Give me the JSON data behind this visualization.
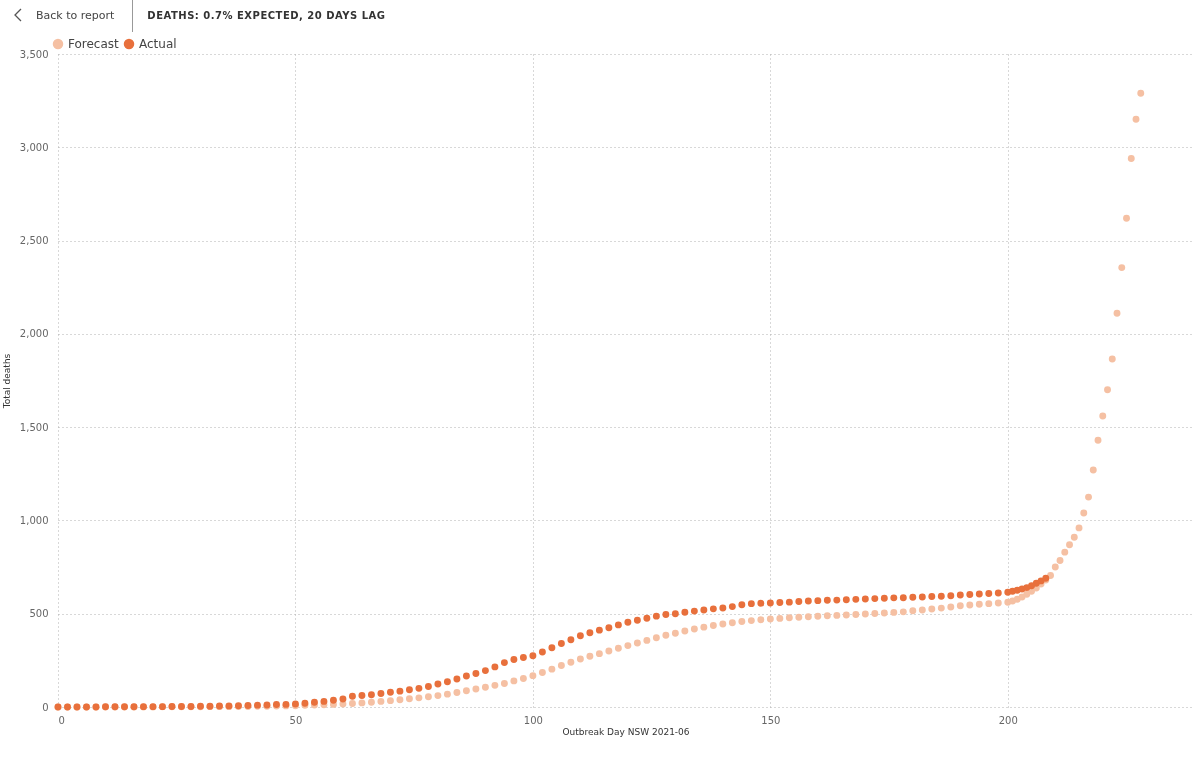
{
  "chart_data": {
    "type": "scatter",
    "title": "DEATHS: 0.7% EXPECTED, 20 DAYS LAG",
    "annotations": [
      "Back to report"
    ],
    "xlabel": "Outbreak Day NSW 2021-06",
    "ylabel": "Total deaths",
    "xlim": [
      0,
      239
    ],
    "xticks": [
      0,
      50,
      100,
      150,
      200
    ],
    "ylim": [
      0,
      3500
    ],
    "yticks": [
      0,
      500,
      {
        "value": 1000,
        "label": "1,000"
      },
      {
        "value": 1500,
        "label": "1,500"
      },
      {
        "value": 2000,
        "label": "2,000"
      },
      {
        "value": 2500,
        "label": "2,500"
      },
      {
        "value": 3000,
        "label": "3,000"
      },
      {
        "value": 3500,
        "label": "3,500"
      }
    ],
    "grid": true,
    "legend": "top left",
    "marker": "circle",
    "series": [
      {
        "name": "Forecast",
        "color": "#f5c0a3",
        "x": [
          0,
          2,
          4,
          6,
          8,
          10,
          12,
          14,
          16,
          18,
          20,
          22,
          24,
          26,
          28,
          30,
          32,
          34,
          36,
          38,
          40,
          42,
          44,
          46,
          48,
          50,
          52,
          54,
          56,
          58,
          60,
          62,
          64,
          66,
          68,
          70,
          72,
          74,
          76,
          78,
          80,
          82,
          84,
          86,
          88,
          90,
          92,
          94,
          96,
          98,
          100,
          102,
          104,
          106,
          108,
          110,
          112,
          114,
          116,
          118,
          120,
          122,
          124,
          126,
          128,
          130,
          132,
          134,
          136,
          138,
          140,
          142,
          144,
          146,
          148,
          150,
          152,
          154,
          156,
          158,
          160,
          162,
          164,
          166,
          168,
          170,
          172,
          174,
          176,
          178,
          180,
          182,
          184,
          186,
          188,
          190,
          192,
          194,
          196,
          198,
          200,
          201,
          202,
          203,
          204,
          205,
          206,
          207,
          208,
          209,
          210,
          211,
          212,
          213,
          214,
          215,
          216,
          217,
          218,
          219,
          220,
          221,
          222,
          223,
          224,
          225,
          226,
          227,
          228
        ],
        "values": [
          0,
          0,
          0,
          0,
          0,
          0,
          0,
          0,
          0,
          0,
          0,
          1,
          1,
          1,
          1,
          1,
          2,
          2,
          2,
          3,
          3,
          4,
          4,
          5,
          6,
          7,
          9,
          11,
          12,
          14,
          16,
          19,
          22,
          25,
          30,
          34,
          39,
          44,
          49,
          55,
          61,
          69,
          78,
          87,
          96,
          106,
          116,
          126,
          140,
          153,
          168,
          185,
          203,
          222,
          240,
          257,
          272,
          286,
          300,
          315,
          329,
          343,
          357,
          371,
          385,
          395,
          407,
          418,
          428,
          437,
          445,
          452,
          458,
          463,
          468,
          472,
          475,
          478,
          481,
          484,
          486,
          489,
          491,
          493,
          496,
          498,
          501,
          504,
          507,
          510,
          516,
          520,
          525,
          530,
          536,
          543,
          547,
          551,
          554,
          557,
          561,
          568,
          578,
          590,
          604,
          620,
          638,
          659,
          681,
          705,
          750,
          785,
          830,
          870,
          910,
          960,
          1040,
          1125,
          1270,
          1430,
          1560,
          1700,
          1865,
          2110,
          2355,
          2620,
          2940,
          3150,
          3290
        ]
      },
      {
        "name": "Actual",
        "color": "#e8703c",
        "x": [
          0,
          2,
          4,
          6,
          8,
          10,
          12,
          14,
          16,
          18,
          20,
          22,
          24,
          26,
          28,
          30,
          32,
          34,
          36,
          38,
          40,
          42,
          44,
          46,
          48,
          50,
          52,
          54,
          56,
          58,
          60,
          62,
          64,
          66,
          68,
          70,
          72,
          74,
          76,
          78,
          80,
          82,
          84,
          86,
          88,
          90,
          92,
          94,
          96,
          98,
          100,
          102,
          104,
          106,
          108,
          110,
          112,
          114,
          116,
          118,
          120,
          122,
          124,
          126,
          128,
          130,
          132,
          134,
          136,
          138,
          140,
          142,
          144,
          146,
          148,
          150,
          152,
          154,
          156,
          158,
          160,
          162,
          164,
          166,
          168,
          170,
          172,
          174,
          176,
          178,
          180,
          182,
          184,
          186,
          188,
          190,
          192,
          194,
          196,
          198,
          200,
          201,
          202,
          203,
          204,
          205,
          206,
          207,
          208
        ],
        "values": [
          0,
          0,
          0,
          0,
          0,
          1,
          1,
          1,
          1,
          2,
          2,
          2,
          3,
          3,
          3,
          4,
          4,
          5,
          6,
          7,
          8,
          10,
          11,
          13,
          14,
          16,
          20,
          25,
          30,
          36,
          43,
          58,
          62,
          66,
          72,
          79,
          85,
          92,
          100,
          110,
          123,
          135,
          150,
          166,
          180,
          195,
          215,
          238,
          255,
          265,
          275,
          295,
          318,
          340,
          360,
          382,
          398,
          412,
          425,
          440,
          454,
          465,
          476,
          487,
          496,
          500,
          508,
          514,
          520,
          526,
          531,
          538,
          548,
          554,
          556,
          557,
          560,
          562,
          565,
          568,
          570,
          572,
          573,
          575,
          577,
          579,
          581,
          583,
          585,
          586,
          588,
          590,
          592,
          594,
          596,
          600,
          603,
          606,
          608,
          611,
          615,
          620,
          626,
          632,
          640,
          650,
          663,
          676,
          690
        ]
      }
    ]
  }
}
